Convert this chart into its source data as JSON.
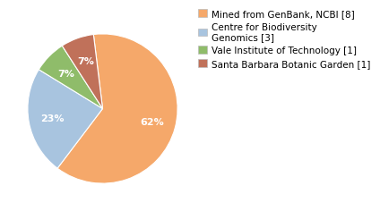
{
  "labels": [
    "Mined from GenBank, NCBI [8]",
    "Centre for Biodiversity\nGenomics [3]",
    "Vale Institute of Technology [1]",
    "Santa Barbara Botanic Garden [1]"
  ],
  "values": [
    61,
    23,
    7,
    7
  ],
  "colors": [
    "#F5A86A",
    "#A8C4DF",
    "#8FBC6A",
    "#C0715A"
  ],
  "startangle": 97,
  "text_color": "white",
  "fontsize_autopct": 8,
  "fontsize_legend": 7.5,
  "background_color": "#ffffff",
  "legend_labels": [
    "Mined from GenBank, NCBI [8]",
    "Centre for Biodiversity\nGenomics [3]",
    "Vale Institute of Technology [1]",
    "Santa Barbara Botanic Garden [1]"
  ]
}
